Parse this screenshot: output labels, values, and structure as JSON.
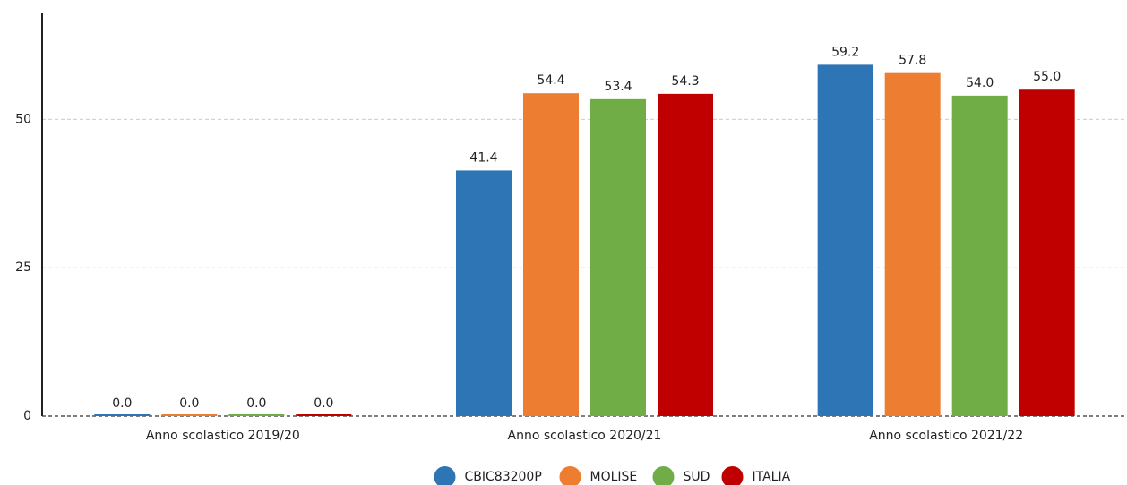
{
  "chart_data": {
    "type": "bar",
    "categories": [
      "Anno scolastico 2019/20",
      "Anno scolastico 2020/21",
      "Anno scolastico 2021/22"
    ],
    "series": [
      {
        "name": "CBIC83200P",
        "color": "#2e75b6",
        "values": [
          0,
          41.4,
          59.2
        ],
        "value_labels": [
          "0.0",
          "41.4",
          "59.2"
        ]
      },
      {
        "name": "MOLISE",
        "color": "#ed7d31",
        "values": [
          0,
          54.4,
          57.8
        ],
        "value_labels": [
          "0.0",
          "54.4",
          "57.8"
        ]
      },
      {
        "name": "SUD",
        "color": "#70ad47",
        "values": [
          0,
          53.4,
          54.0
        ],
        "value_labels": [
          "0.0",
          "53.4",
          "54.0"
        ]
      },
      {
        "name": "ITALIA",
        "color": "#c00000",
        "values": [
          0,
          54.3,
          55.0
        ],
        "value_labels": [
          "0.0",
          "54.3",
          "55.0"
        ]
      }
    ],
    "ylim": [
      0,
      68
    ],
    "yticks": [
      0,
      25,
      50
    ],
    "grid": true,
    "legend": "bottom"
  }
}
